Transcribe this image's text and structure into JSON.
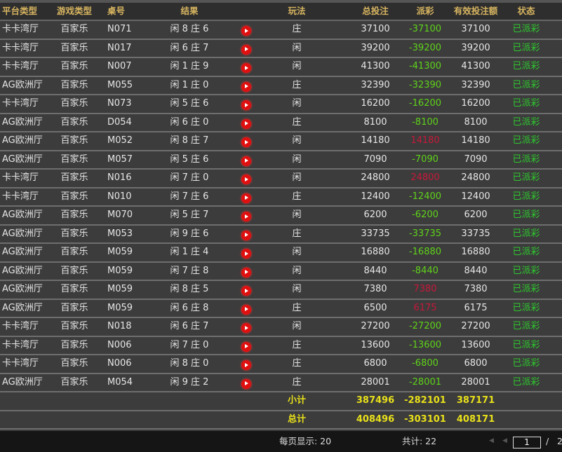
{
  "headers": {
    "platform": "平台类型",
    "game": "游戏类型",
    "table": "桌号",
    "result": "结果",
    "play": "玩法",
    "total_bet": "总投注",
    "payout": "派彩",
    "valid_bet": "有效投注额",
    "status": "状态"
  },
  "rows": [
    {
      "platform": "卡卡湾厅",
      "game": "百家乐",
      "table": "N071",
      "result": "闲 8 庄 6",
      "play": "庄",
      "total": "37100",
      "payout": "-37100",
      "payout_color": "green",
      "valid": "37100",
      "status": "已派彩"
    },
    {
      "platform": "卡卡湾厅",
      "game": "百家乐",
      "table": "N017",
      "result": "闲 6 庄 7",
      "play": "闲",
      "total": "39200",
      "payout": "-39200",
      "payout_color": "green",
      "valid": "39200",
      "status": "已派彩"
    },
    {
      "platform": "卡卡湾厅",
      "game": "百家乐",
      "table": "N007",
      "result": "闲 1 庄 9",
      "play": "闲",
      "total": "41300",
      "payout": "-41300",
      "payout_color": "green",
      "valid": "41300",
      "status": "已派彩"
    },
    {
      "platform": "AG欧洲厅",
      "game": "百家乐",
      "table": "M055",
      "result": "闲 1 庄 0",
      "play": "庄",
      "total": "32390",
      "payout": "-32390",
      "payout_color": "green",
      "valid": "32390",
      "status": "已派彩"
    },
    {
      "platform": "卡卡湾厅",
      "game": "百家乐",
      "table": "N073",
      "result": "闲 5 庄 6",
      "play": "闲",
      "total": "16200",
      "payout": "-16200",
      "payout_color": "green",
      "valid": "16200",
      "status": "已派彩"
    },
    {
      "platform": "AG欧洲厅",
      "game": "百家乐",
      "table": "D054",
      "result": "闲 6 庄 0",
      "play": "庄",
      "total": "8100",
      "payout": "-8100",
      "payout_color": "green",
      "valid": "8100",
      "status": "已派彩"
    },
    {
      "platform": "AG欧洲厅",
      "game": "百家乐",
      "table": "M052",
      "result": "闲 8 庄 7",
      "play": "闲",
      "total": "14180",
      "payout": "14180",
      "payout_color": "red",
      "valid": "14180",
      "status": "已派彩"
    },
    {
      "platform": "AG欧洲厅",
      "game": "百家乐",
      "table": "M057",
      "result": "闲 5 庄 6",
      "play": "闲",
      "total": "7090",
      "payout": "-7090",
      "payout_color": "green",
      "valid": "7090",
      "status": "已派彩"
    },
    {
      "platform": "卡卡湾厅",
      "game": "百家乐",
      "table": "N016",
      "result": "闲 7 庄 0",
      "play": "闲",
      "total": "24800",
      "payout": "24800",
      "payout_color": "red",
      "valid": "24800",
      "status": "已派彩"
    },
    {
      "platform": "卡卡湾厅",
      "game": "百家乐",
      "table": "N010",
      "result": "闲 7 庄 6",
      "play": "庄",
      "total": "12400",
      "payout": "-12400",
      "payout_color": "green",
      "valid": "12400",
      "status": "已派彩"
    },
    {
      "platform": "AG欧洲厅",
      "game": "百家乐",
      "table": "M070",
      "result": "闲 5 庄 7",
      "play": "闲",
      "total": "6200",
      "payout": "-6200",
      "payout_color": "green",
      "valid": "6200",
      "status": "已派彩"
    },
    {
      "platform": "AG欧洲厅",
      "game": "百家乐",
      "table": "M053",
      "result": "闲 9 庄 6",
      "play": "庄",
      "total": "33735",
      "payout": "-33735",
      "payout_color": "green",
      "valid": "33735",
      "status": "已派彩"
    },
    {
      "platform": "AG欧洲厅",
      "game": "百家乐",
      "table": "M059",
      "result": "闲 1 庄 4",
      "play": "闲",
      "total": "16880",
      "payout": "-16880",
      "payout_color": "green",
      "valid": "16880",
      "status": "已派彩"
    },
    {
      "platform": "AG欧洲厅",
      "game": "百家乐",
      "table": "M059",
      "result": "闲 7 庄 8",
      "play": "闲",
      "total": "8440",
      "payout": "-8440",
      "payout_color": "green",
      "valid": "8440",
      "status": "已派彩"
    },
    {
      "platform": "AG欧洲厅",
      "game": "百家乐",
      "table": "M059",
      "result": "闲 8 庄 5",
      "play": "闲",
      "total": "7380",
      "payout": "7380",
      "payout_color": "red",
      "valid": "7380",
      "status": "已派彩"
    },
    {
      "platform": "AG欧洲厅",
      "game": "百家乐",
      "table": "M059",
      "result": "闲 6 庄 8",
      "play": "庄",
      "total": "6500",
      "payout": "6175",
      "payout_color": "red",
      "valid": "6175",
      "status": "已派彩"
    },
    {
      "platform": "卡卡湾厅",
      "game": "百家乐",
      "table": "N018",
      "result": "闲 6 庄 7",
      "play": "闲",
      "total": "27200",
      "payout": "-27200",
      "payout_color": "green",
      "valid": "27200",
      "status": "已派彩"
    },
    {
      "platform": "卡卡湾厅",
      "game": "百家乐",
      "table": "N006",
      "result": "闲 7 庄 0",
      "play": "庄",
      "total": "13600",
      "payout": "-13600",
      "payout_color": "green",
      "valid": "13600",
      "status": "已派彩"
    },
    {
      "platform": "卡卡湾厅",
      "game": "百家乐",
      "table": "N006",
      "result": "闲 8 庄 0",
      "play": "庄",
      "total": "6800",
      "payout": "-6800",
      "payout_color": "green",
      "valid": "6800",
      "status": "已派彩"
    },
    {
      "platform": "AG欧洲厅",
      "game": "百家乐",
      "table": "M054",
      "result": "闲 9 庄 2",
      "play": "庄",
      "total": "28001",
      "payout": "-28001",
      "payout_color": "green",
      "valid": "28001",
      "status": "已派彩"
    }
  ],
  "subtotal": {
    "label": "小计",
    "total": "387496",
    "payout": "-282101",
    "valid": "387171"
  },
  "grand_total": {
    "label": "总计",
    "total": "408496",
    "payout": "-303101",
    "valid": "408171"
  },
  "footer": {
    "per_page": "每页显示: 20",
    "count": "共计: 22",
    "page": "1",
    "page_sep": "/",
    "page_total": "2"
  },
  "colors": {
    "header_text": "#d8b560",
    "green": "#5fd31a",
    "red": "#c8183a",
    "status": "#2ec82e",
    "summary": "#e8e01a"
  },
  "icons": {
    "row_action": "play-icon",
    "first_page": "first-page-icon",
    "prev_page": "prev-page-icon"
  }
}
